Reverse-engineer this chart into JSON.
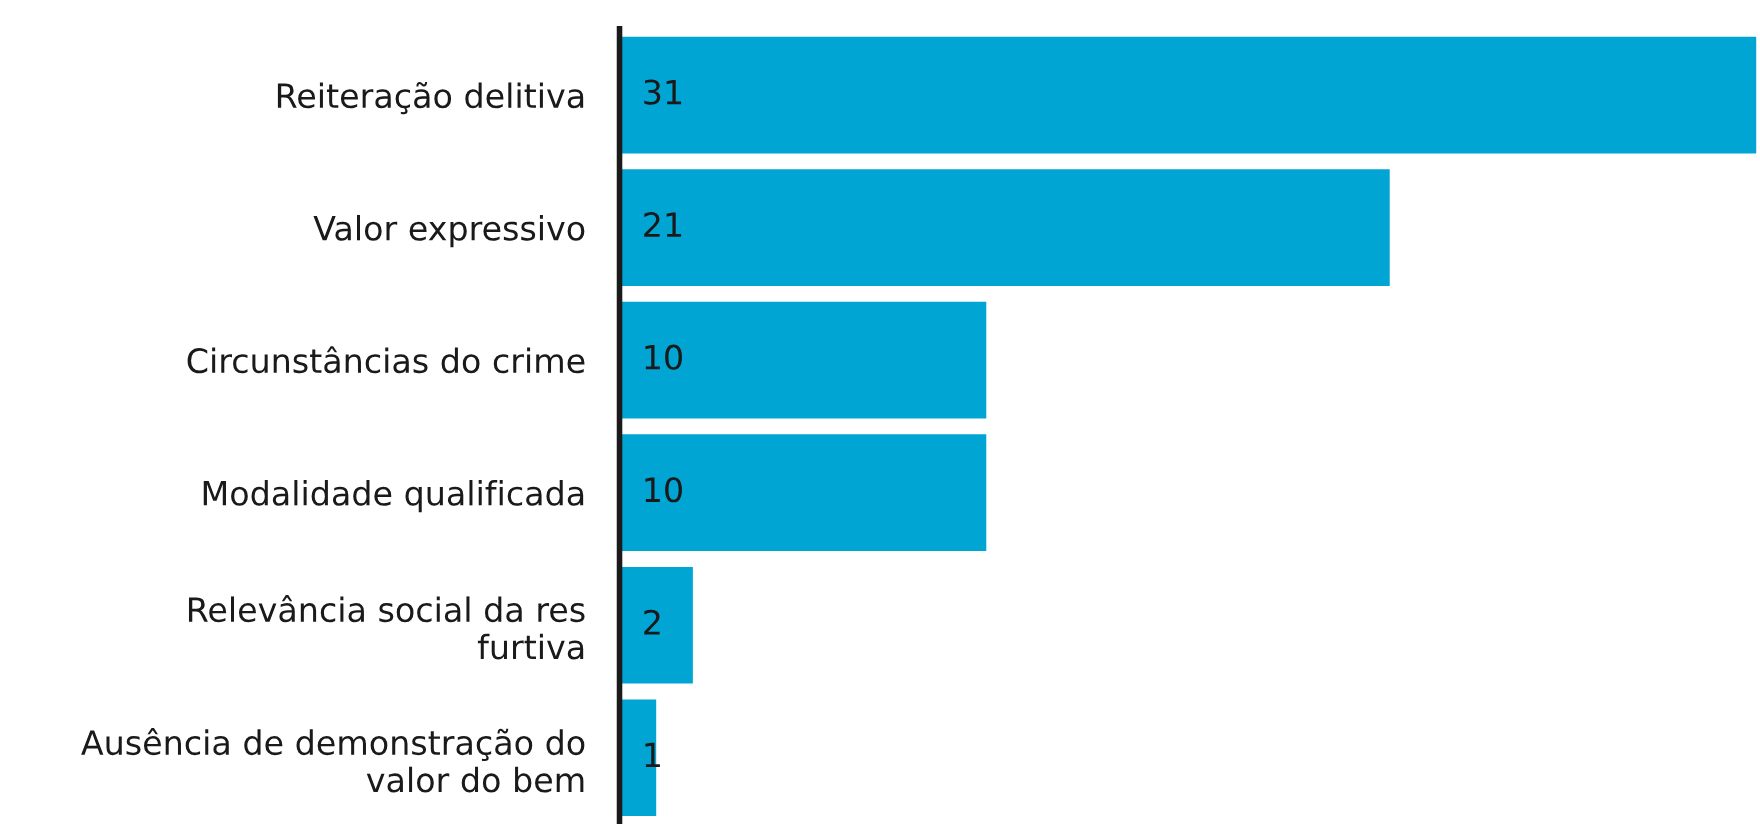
{
  "chart_data": {
    "type": "bar",
    "orientation": "horizontal",
    "categories": [
      "Reiteração delitiva",
      "Valor expressivo",
      "Circunstâncias do crime",
      "Modalidade qualificada",
      "Relevância social da res\nfurtiva",
      "Ausência de demonstração do\nvalor do bem"
    ],
    "values": [
      31,
      21,
      10,
      10,
      2,
      1
    ],
    "color": "#00a5d4",
    "data_labels": true,
    "grid": false,
    "legend": false
  }
}
